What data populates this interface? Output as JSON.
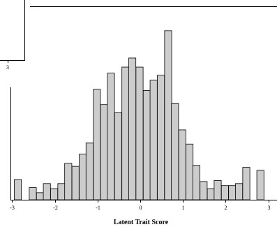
{
  "chart_data": {
    "type": "bar",
    "subtype": "histogram",
    "xlabel": "Latent Trait Score",
    "xlim": [
      -3.2,
      3.2
    ],
    "x_ticks": [
      "-3",
      "-2",
      "-1",
      "0",
      "1",
      "2",
      "3"
    ],
    "x_tick_values": [
      -3,
      -2,
      -1,
      0,
      1,
      2,
      3
    ],
    "partial_panel_tick": "3",
    "bin_width": 0.167,
    "bins": [
      {
        "start": -2.95,
        "count": 2.0
      },
      {
        "start": -2.6,
        "count": 1.2
      },
      {
        "start": -2.43,
        "count": 0.7
      },
      {
        "start": -2.27,
        "count": 1.6
      },
      {
        "start": -2.1,
        "count": 1.1
      },
      {
        "start": -1.93,
        "count": 1.6
      },
      {
        "start": -1.77,
        "count": 3.6
      },
      {
        "start": -1.6,
        "count": 3.3
      },
      {
        "start": -1.43,
        "count": 4.5
      },
      {
        "start": -1.27,
        "count": 5.6
      },
      {
        "start": -1.1,
        "count": 10.9
      },
      {
        "start": -0.93,
        "count": 9.4
      },
      {
        "start": -0.77,
        "count": 12.5
      },
      {
        "start": -0.6,
        "count": 8.6
      },
      {
        "start": -0.43,
        "count": 13.1
      },
      {
        "start": -0.27,
        "count": 14.0
      },
      {
        "start": -0.1,
        "count": 13.1
      },
      {
        "start": 0.07,
        "count": 10.8
      },
      {
        "start": 0.23,
        "count": 11.8
      },
      {
        "start": 0.4,
        "count": 12.3
      },
      {
        "start": 0.57,
        "count": 16.7
      },
      {
        "start": 0.73,
        "count": 9.5
      },
      {
        "start": 0.9,
        "count": 6.9
      },
      {
        "start": 1.07,
        "count": 5.5
      },
      {
        "start": 1.23,
        "count": 3.4
      },
      {
        "start": 1.4,
        "count": 1.8
      },
      {
        "start": 1.57,
        "count": 1.1
      },
      {
        "start": 1.73,
        "count": 1.9
      },
      {
        "start": 1.9,
        "count": 1.4
      },
      {
        "start": 2.07,
        "count": 1.4
      },
      {
        "start": 2.23,
        "count": 1.6
      },
      {
        "start": 2.4,
        "count": 3.2
      },
      {
        "start": 2.73,
        "count": 2.9
      }
    ],
    "ylim": [
      0,
      18
    ],
    "grid": false,
    "legend": "none"
  }
}
